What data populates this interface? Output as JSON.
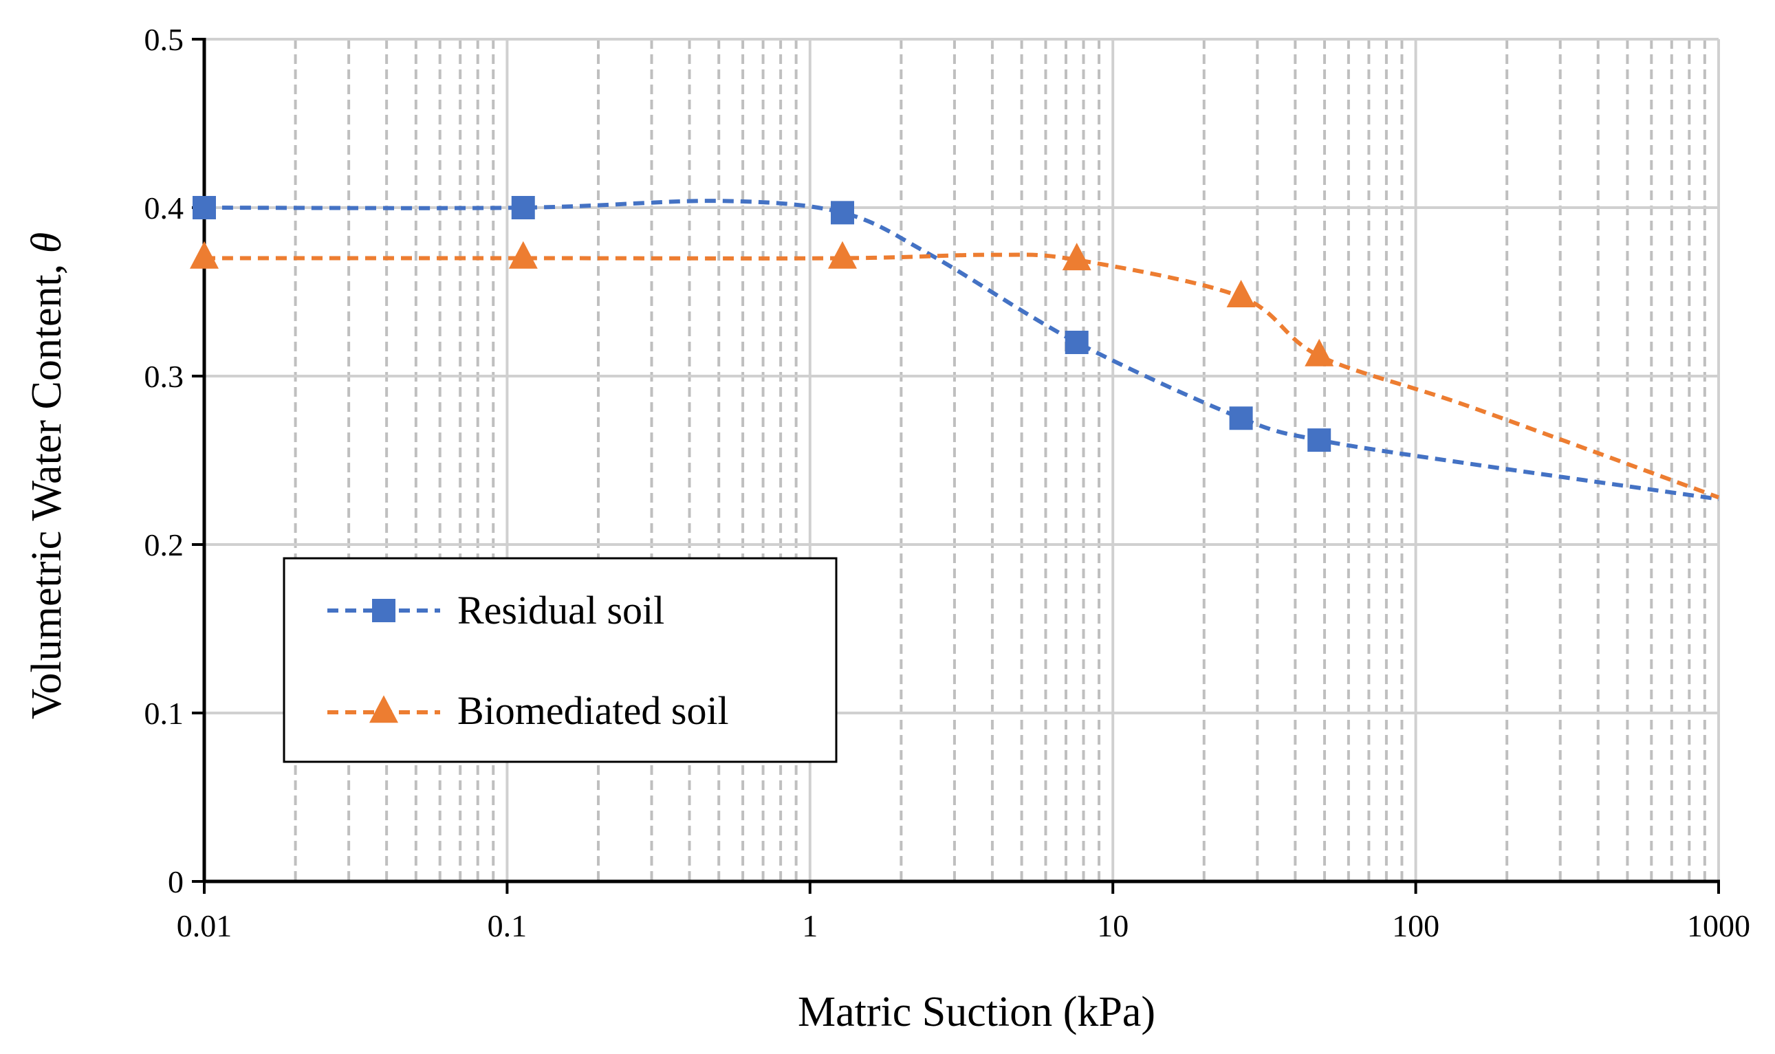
{
  "chart_data": {
    "type": "line",
    "title": "",
    "xlabel": "Matric Suction (kPa)",
    "ylabel": "Volumetric Water Content, θ",
    "ylabel_main": "Volumetric Water Content, ",
    "ylabel_symbol": "θ",
    "xscale": "log",
    "xlim": [
      0.01,
      1000
    ],
    "ylim": [
      0,
      0.5
    ],
    "x_ticks": [
      0.01,
      0.1,
      1,
      10,
      100,
      1000
    ],
    "x_tick_labels": [
      "0.01",
      "0.1",
      "1",
      "10",
      "100",
      "1000"
    ],
    "y_ticks": [
      0,
      0.1,
      0.2,
      0.3,
      0.4,
      0.5
    ],
    "y_tick_labels": [
      "0",
      "0.1",
      "0.2",
      "0.3",
      "0.4",
      "0.5"
    ],
    "grid": {
      "major": true,
      "minor_x_dashed": true
    },
    "legend": {
      "position": "lower-left",
      "entries": [
        "Residual soil",
        "Biomediated soil"
      ]
    },
    "series": [
      {
        "name": "Residual soil",
        "color": "#4472C4",
        "marker": "square",
        "line_style": "dashed",
        "points": [
          {
            "x": 0.01,
            "y": 0.4
          },
          {
            "x": 0.113,
            "y": 0.4
          },
          {
            "x": 1.28,
            "y": 0.397
          },
          {
            "x": 7.6,
            "y": 0.32
          },
          {
            "x": 26.5,
            "y": 0.275
          },
          {
            "x": 48,
            "y": 0.262
          }
        ],
        "curve_points": [
          {
            "x": 0.01,
            "y": 0.4
          },
          {
            "x": 0.113,
            "y": 0.4
          },
          {
            "x": 0.5,
            "y": 0.404
          },
          {
            "x": 1.28,
            "y": 0.397
          },
          {
            "x": 2.5,
            "y": 0.372
          },
          {
            "x": 7.6,
            "y": 0.32
          },
          {
            "x": 26.5,
            "y": 0.275
          },
          {
            "x": 48,
            "y": 0.262
          },
          {
            "x": 150,
            "y": 0.248
          },
          {
            "x": 1000,
            "y": 0.227
          }
        ]
      },
      {
        "name": "Biomediated soil",
        "color": "#ED7D31",
        "marker": "triangle",
        "line_style": "dashed",
        "points": [
          {
            "x": 0.01,
            "y": 0.37
          },
          {
            "x": 0.113,
            "y": 0.37
          },
          {
            "x": 1.28,
            "y": 0.37
          },
          {
            "x": 7.6,
            "y": 0.369
          },
          {
            "x": 26.5,
            "y": 0.347
          },
          {
            "x": 48,
            "y": 0.312
          }
        ],
        "curve_points": [
          {
            "x": 0.01,
            "y": 0.37
          },
          {
            "x": 0.113,
            "y": 0.37
          },
          {
            "x": 1.28,
            "y": 0.37
          },
          {
            "x": 4,
            "y": 0.372
          },
          {
            "x": 7.6,
            "y": 0.369
          },
          {
            "x": 26.5,
            "y": 0.347
          },
          {
            "x": 48,
            "y": 0.312
          },
          {
            "x": 150,
            "y": 0.282
          },
          {
            "x": 1000,
            "y": 0.228
          }
        ]
      }
    ]
  }
}
